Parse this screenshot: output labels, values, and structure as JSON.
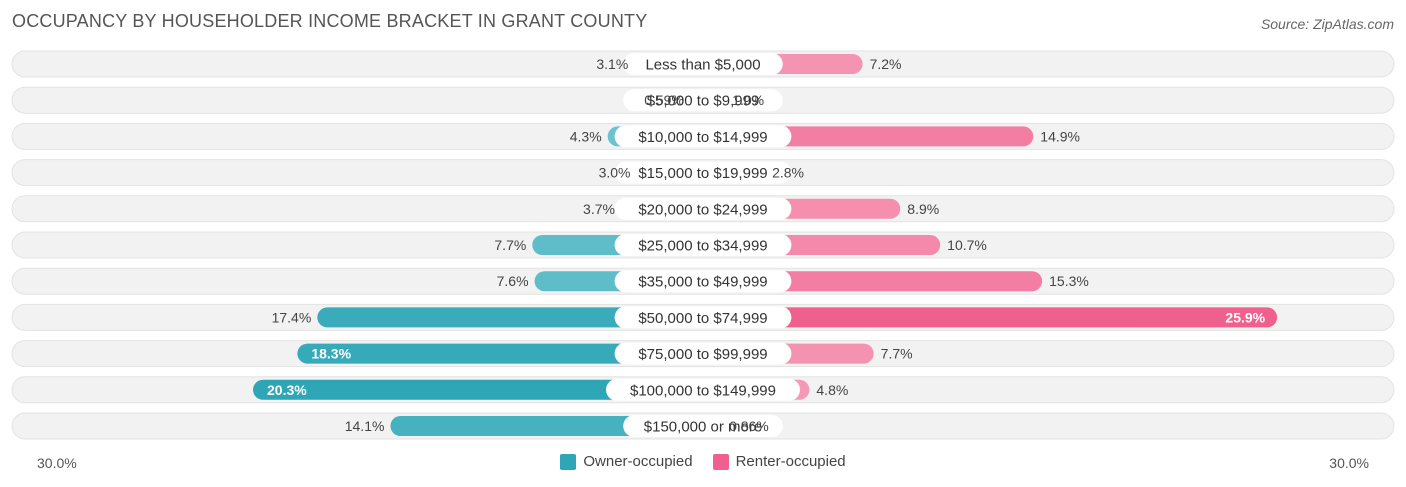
{
  "header": {
    "title": "OCCUPANCY BY HOUSEHOLDER INCOME BRACKET IN GRANT COUNTY",
    "source": "Source: ZipAtlas.com"
  },
  "colors": {
    "owner": "#2ea6b6",
    "owner_light": "#7ccbd4",
    "renter": "#f0608f",
    "renter_light": "#f7a6c0",
    "row_bg": "#f0f0f0"
  },
  "chart_data": {
    "type": "bar",
    "orientation": "horizontal-diverging",
    "title": "OCCUPANCY BY HOUSEHOLDER INCOME BRACKET IN GRANT COUNTY",
    "categories": [
      "Less than $5,000",
      "$5,000 to $9,999",
      "$10,000 to $14,999",
      "$15,000 to $19,999",
      "$20,000 to $24,999",
      "$25,000 to $34,999",
      "$35,000 to $49,999",
      "$50,000 to $74,999",
      "$75,000 to $99,999",
      "$100,000 to $149,999",
      "$150,000 or more"
    ],
    "series": [
      {
        "name": "Owner-occupied",
        "values": [
          3.1,
          0.59,
          4.3,
          3.0,
          3.7,
          7.7,
          7.6,
          17.4,
          18.3,
          20.3,
          14.1
        ],
        "labels": [
          "3.1%",
          "0.59%",
          "4.3%",
          "3.0%",
          "3.7%",
          "7.7%",
          "7.6%",
          "17.4%",
          "18.3%",
          "20.3%",
          "14.1%"
        ]
      },
      {
        "name": "Renter-occupied",
        "values": [
          7.2,
          1.0,
          14.9,
          2.8,
          8.9,
          10.7,
          15.3,
          25.9,
          7.7,
          4.8,
          0.86
        ],
        "labels": [
          "7.2%",
          "1.0%",
          "14.9%",
          "2.8%",
          "8.9%",
          "10.7%",
          "15.3%",
          "25.9%",
          "7.7%",
          "4.8%",
          "0.86%"
        ]
      }
    ],
    "xlim": [
      -30,
      30
    ],
    "axis_labels": {
      "left": "30.0%",
      "right": "30.0%"
    },
    "legend_position": "bottom-center"
  },
  "legend": {
    "owner_label": "Owner-occupied",
    "renter_label": "Renter-occupied"
  }
}
